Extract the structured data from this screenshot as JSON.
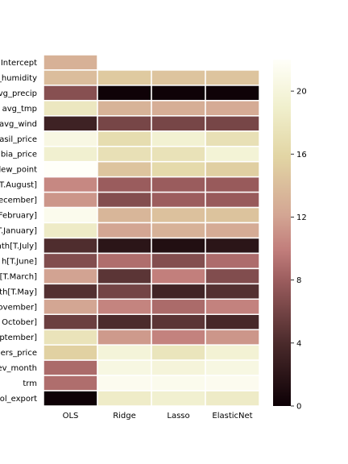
{
  "chart_data": {
    "type": "heatmap",
    "columns": [
      "OLS",
      "Ridge",
      "Lasso",
      "ElasticNet"
    ],
    "rows": [
      "Intercept",
      "_humidity",
      "avg_precip",
      "avg_tmp",
      "avg_wind",
      "asil_price",
      "bia_price",
      "dew_point",
      "T.August]",
      "ecember]",
      "February]",
      "T.January]",
      "nth[T.July]",
      "h[T.June]",
      "[T.March]",
      "th[T.May]",
      "ovember]",
      "October]",
      "ptember]",
      "ers_price",
      "ev_month",
      "trm",
      "ol_export"
    ],
    "values": [
      [
        13,
        null,
        null,
        null
      ],
      [
        14,
        15,
        14.5,
        14.5
      ],
      [
        7,
        0.2,
        0.2,
        0.2
      ],
      [
        18,
        13.2,
        12.8,
        12.6
      ],
      [
        3.2,
        6.2,
        6.2,
        6.2
      ],
      [
        20.5,
        16.8,
        19.3,
        17.2
      ],
      [
        19.2,
        17.2,
        17.4,
        19.6
      ],
      [
        22,
        14.5,
        16.4,
        15.4
      ],
      [
        10.5,
        7.9,
        7.9,
        7.8
      ],
      [
        11.3,
        6.8,
        8,
        7.8
      ],
      [
        21.2,
        13.4,
        14.3,
        14.4
      ],
      [
        18.5,
        12.2,
        13.1,
        12.6
      ],
      [
        4.2,
        2,
        1.4,
        2
      ],
      [
        6.7,
        9,
        6.8,
        8.9
      ],
      [
        12,
        4.8,
        10,
        6.7
      ],
      [
        4.4,
        6,
        3.4,
        4.4
      ],
      [
        12.2,
        10.3,
        8.8,
        10.2
      ],
      [
        5.6,
        4,
        4.8,
        3.8
      ],
      [
        17.5,
        11.5,
        10.2,
        11.3
      ],
      [
        15.5,
        19.8,
        17.7,
        19.5
      ],
      [
        8.8,
        20.4,
        19.9,
        20.4
      ],
      [
        9,
        21.3,
        21.2,
        21.3
      ],
      [
        0.1,
        18.6,
        19.2,
        18.5
      ]
    ],
    "colorbar": {
      "min": 0,
      "max": 22,
      "ticks": [
        0,
        4,
        8,
        12,
        16,
        20
      ],
      "colorscale": [
        [
          0,
          "#0c0005"
        ],
        [
          0.18,
          "#4a2a2b"
        ],
        [
          0.36,
          "#9a5c5d"
        ],
        [
          0.45,
          "#c17d7b"
        ],
        [
          0.55,
          "#d3a593"
        ],
        [
          0.72,
          "#e2d5a4"
        ],
        [
          0.86,
          "#f0efcc"
        ],
        [
          1,
          "#fffff9"
        ]
      ]
    }
  }
}
